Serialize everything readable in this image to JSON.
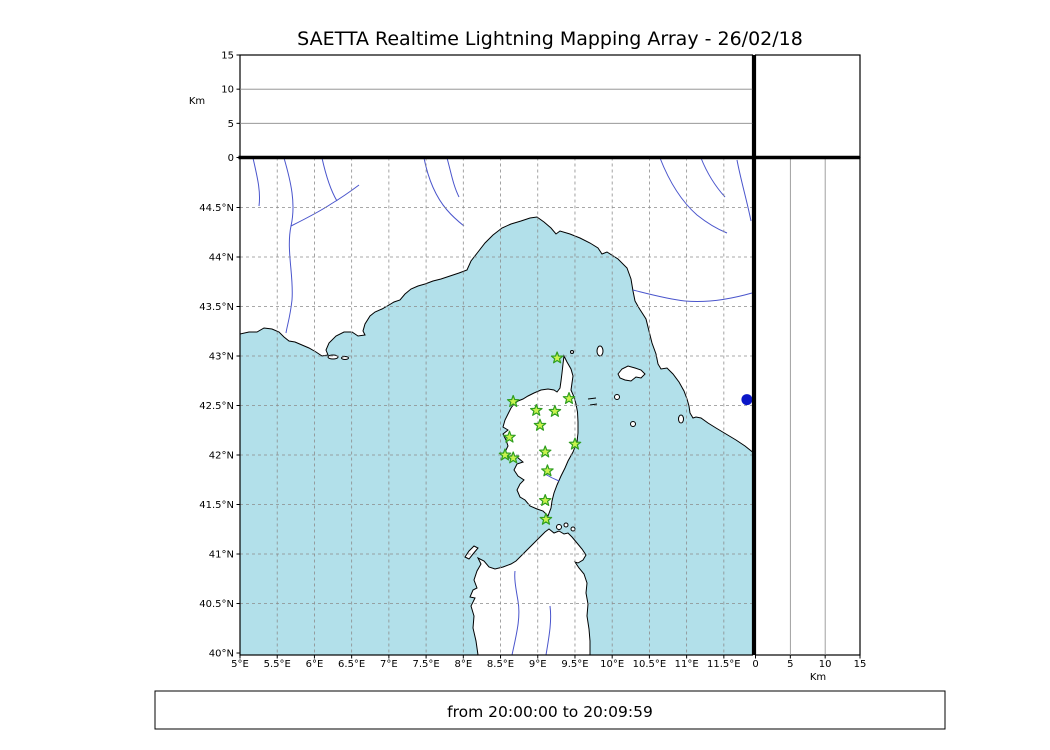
{
  "title": "SAETTA Realtime Lightning Mapping Array - 26/02/18",
  "status_bar": {
    "text": "from 20:00:00 to 20:09:59"
  },
  "axes": {
    "top_panel_ylabel": "Km",
    "right_panel_xlabel": "Km"
  },
  "colors": {
    "sea": "#b2e0ea",
    "land": "#ffffff",
    "coastline": "#000000",
    "river": "#4a55cc",
    "grid": "#8c8c8c",
    "panel_grid": "#888888",
    "station_fill": "#c9f34e",
    "station_stroke": "#2f9e1f",
    "event_dot": "#0a16c8"
  },
  "chart_data": {
    "type": "scatter",
    "title": "SAETTA Realtime Lightning Mapping Array - 26/02/18",
    "time_window": "from 20:00:00 to 20:09:59",
    "map": {
      "lon_range": [
        5.0,
        11.885
      ],
      "lat_range": [
        39.98,
        45.005
      ],
      "grid": "dashed",
      "lon_ticks": [
        {
          "v": 5,
          "label": "5°E"
        },
        {
          "v": 5.5,
          "label": "5.5°E"
        },
        {
          "v": 6,
          "label": "6°E"
        },
        {
          "v": 6.5,
          "label": "6.5°E"
        },
        {
          "v": 7,
          "label": "7°E"
        },
        {
          "v": 7.5,
          "label": "7.5°E"
        },
        {
          "v": 8,
          "label": "8°E"
        },
        {
          "v": 8.5,
          "label": "8.5°E"
        },
        {
          "v": 9,
          "label": "9°E"
        },
        {
          "v": 9.5,
          "label": "9.5°E"
        },
        {
          "v": 10,
          "label": "10°E"
        },
        {
          "v": 10.5,
          "label": "10.5°E"
        },
        {
          "v": 11,
          "label": "11°E"
        },
        {
          "v": 11.5,
          "label": "11.5°E"
        }
      ],
      "lat_ticks": [
        {
          "v": 40,
          "label": "40°N"
        },
        {
          "v": 40.5,
          "label": "40.5°N"
        },
        {
          "v": 41,
          "label": "41°N"
        },
        {
          "v": 41.5,
          "label": "41.5°N"
        },
        {
          "v": 42,
          "label": "42°N"
        },
        {
          "v": 42.5,
          "label": "42.5°N"
        },
        {
          "v": 43,
          "label": "43°N"
        },
        {
          "v": 43.5,
          "label": "43.5°N"
        },
        {
          "v": 44,
          "label": "44°N"
        },
        {
          "v": 44.5,
          "label": "44.5°N"
        }
      ],
      "altitude_axis": {
        "label": "Km",
        "range": [
          0,
          15
        ],
        "ticks": [
          {
            "v": 0,
            "label": "0"
          },
          {
            "v": 5,
            "label": "5"
          },
          {
            "v": 10,
            "label": "10"
          },
          {
            "v": 15,
            "label": "15"
          }
        ],
        "grid_ticks": [
          5,
          10
        ]
      }
    },
    "stations": [
      {
        "lon": 9.26,
        "lat": 42.98
      },
      {
        "lon": 8.67,
        "lat": 42.54
      },
      {
        "lon": 8.98,
        "lat": 42.45
      },
      {
        "lon": 9.23,
        "lat": 42.44
      },
      {
        "lon": 9.42,
        "lat": 42.57
      },
      {
        "lon": 9.03,
        "lat": 42.3
      },
      {
        "lon": 8.62,
        "lat": 42.18
      },
      {
        "lon": 9.5,
        "lat": 42.11
      },
      {
        "lon": 8.56,
        "lat": 42.0
      },
      {
        "lon": 8.67,
        "lat": 41.97
      },
      {
        "lon": 9.1,
        "lat": 42.03
      },
      {
        "lon": 9.13,
        "lat": 41.84
      },
      {
        "lon": 9.1,
        "lat": 41.54
      },
      {
        "lon": 9.11,
        "lat": 41.35
      }
    ],
    "events": [
      {
        "lon": 11.81,
        "lat": 42.56
      }
    ]
  }
}
